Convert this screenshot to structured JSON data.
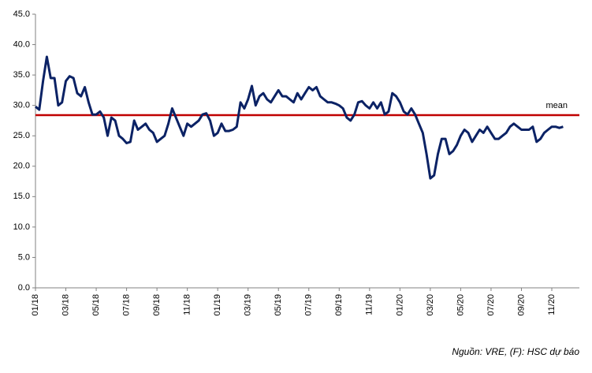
{
  "chart_data": {
    "type": "line",
    "categories": [
      "01/18",
      null,
      null,
      null,
      null,
      null,
      null,
      null,
      "03/18",
      null,
      null,
      null,
      null,
      null,
      null,
      null,
      "05/18",
      null,
      null,
      null,
      null,
      null,
      null,
      null,
      "07/18",
      null,
      null,
      null,
      null,
      null,
      null,
      null,
      "09/18",
      null,
      null,
      null,
      null,
      null,
      null,
      null,
      "11/18",
      null,
      null,
      null,
      null,
      null,
      null,
      null,
      "01/19",
      null,
      null,
      null,
      null,
      null,
      null,
      null,
      "03/19",
      null,
      null,
      null,
      null,
      null,
      null,
      null,
      "05/19",
      null,
      null,
      null,
      null,
      null,
      null,
      null,
      "07/19",
      null,
      null,
      null,
      null,
      null,
      null,
      null,
      "09/19",
      null,
      null,
      null,
      null,
      null,
      null,
      null,
      "11/19",
      null,
      null,
      null,
      null,
      null,
      null,
      null,
      "01/20",
      null,
      null,
      null,
      null,
      null,
      null,
      null,
      "03/20",
      null,
      null,
      null,
      null,
      null,
      null,
      null,
      "05/20",
      null,
      null,
      null,
      null,
      null,
      null,
      null,
      "07/20",
      null,
      null,
      null,
      null,
      null,
      null,
      null,
      "09/20",
      null,
      null,
      null,
      null,
      null,
      null,
      null,
      "11/20",
      null,
      null,
      null
    ],
    "values": [
      29.8,
      29.3,
      34.0,
      38.0,
      34.5,
      34.5,
      30.0,
      30.5,
      34.0,
      34.8,
      34.5,
      32.0,
      31.5,
      33.0,
      30.5,
      28.5,
      28.5,
      29.0,
      28.0,
      25.0,
      28.0,
      27.5,
      25.0,
      24.5,
      23.8,
      24.0,
      27.5,
      26.0,
      26.5,
      27.0,
      26.0,
      25.5,
      24.0,
      24.5,
      25.0,
      27.0,
      29.5,
      28.0,
      26.5,
      25.0,
      27.0,
      26.5,
      27.0,
      27.5,
      28.5,
      28.7,
      27.5,
      25.0,
      25.5,
      27.0,
      25.8,
      25.8,
      26.0,
      26.5,
      30.5,
      29.5,
      31.0,
      33.2,
      30.0,
      31.5,
      32.0,
      31.0,
      30.5,
      31.5,
      32.5,
      31.5,
      31.5,
      31.0,
      30.5,
      32.0,
      31.0,
      32.0,
      33.0,
      32.5,
      33.0,
      31.5,
      31.0,
      30.5,
      30.5,
      30.3,
      30.0,
      29.5,
      28.0,
      27.5,
      28.5,
      30.5,
      30.7,
      30.0,
      29.5,
      30.5,
      29.5,
      30.5,
      28.5,
      29.0,
      32.0,
      31.5,
      30.5,
      29.0,
      28.5,
      29.5,
      28.5,
      27.0,
      25.5,
      22.0,
      18.0,
      18.5,
      22.0,
      24.5,
      24.5,
      22.0,
      22.5,
      23.5,
      25.0,
      26.0,
      25.5,
      24.0,
      25.0,
      26.0,
      25.5,
      26.5,
      25.5,
      24.5,
      24.5,
      25.0,
      25.5,
      26.5,
      27.0,
      26.5,
      26.0,
      26.0,
      26.0,
      26.5,
      24.0,
      24.5,
      25.5,
      26.0,
      26.5,
      26.5,
      26.3,
      26.5
    ],
    "color": "#0b2265",
    "mean": {
      "value": 28.4,
      "label": "mean",
      "color": "#c00000"
    },
    "ylim": [
      0,
      45
    ],
    "yticks": [
      {
        "value": 0,
        "label": "0.0"
      },
      {
        "value": 5,
        "label": "5.0"
      },
      {
        "value": 10,
        "label": "10.0"
      },
      {
        "value": 15,
        "label": "15.0"
      },
      {
        "value": 20,
        "label": "20.0"
      },
      {
        "value": 25,
        "label": "25.0"
      },
      {
        "value": 30,
        "label": "30.0"
      },
      {
        "value": 35,
        "label": "35.0"
      },
      {
        "value": 40,
        "label": "40.0"
      },
      {
        "value": 45,
        "label": "45.0"
      }
    ],
    "source": "Nguồn: VRE, (F): HSC dự báo"
  }
}
